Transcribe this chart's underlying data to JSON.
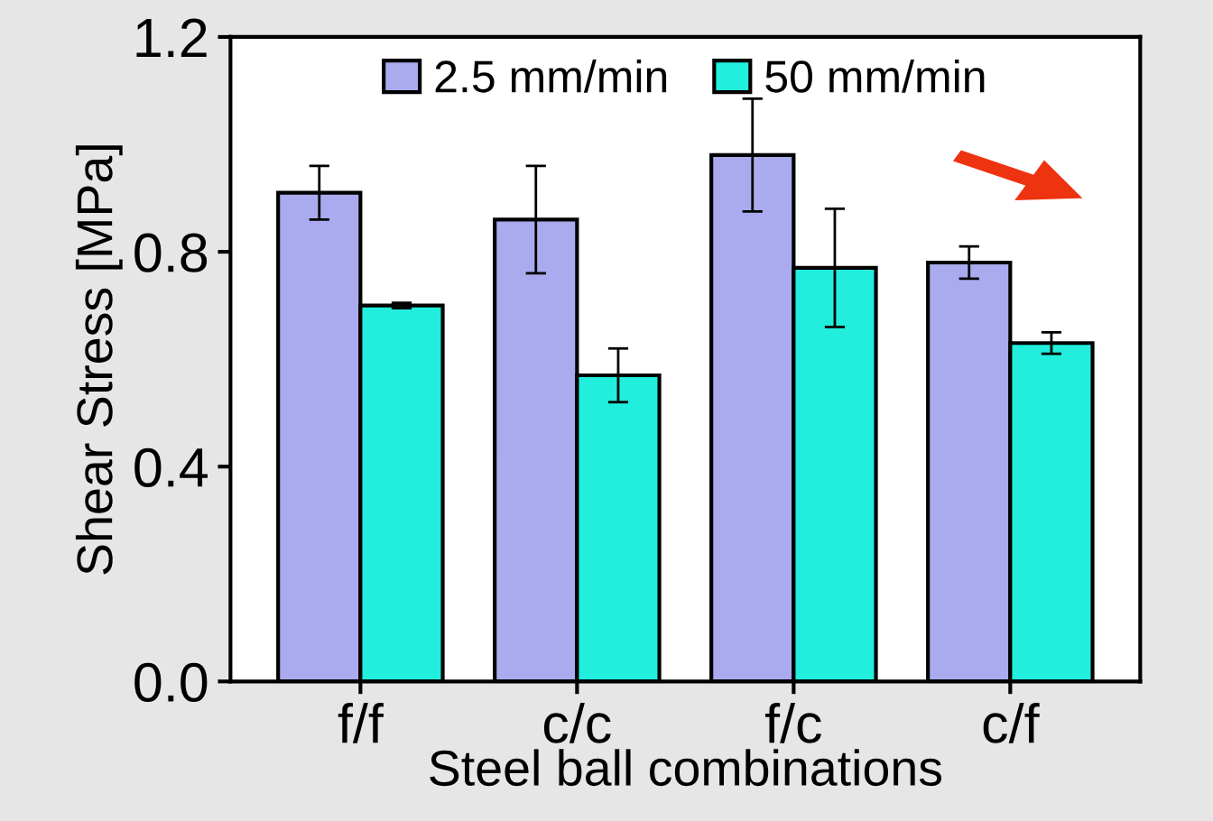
{
  "chart_data": {
    "type": "bar",
    "xlabel": "Steel ball combinations",
    "ylabel": "Shear Stress [MPa]",
    "categories": [
      "f/f",
      "c/c",
      "f/c",
      "c/f"
    ],
    "series": [
      {
        "name": "2.5 mm/min",
        "color": "#aaaaee",
        "values": [
          0.91,
          0.86,
          0.98,
          0.78
        ],
        "errors": [
          0.05,
          0.1,
          0.105,
          0.03
        ]
      },
      {
        "name": "50 mm/min",
        "color": "#22eedd",
        "values": [
          0.7,
          0.57,
          0.77,
          0.63
        ],
        "errors": [
          0.005,
          0.05,
          0.11,
          0.02
        ]
      }
    ],
    "ylim": [
      0,
      1.2
    ],
    "yticks": [
      {
        "value": 0,
        "label": "0.0"
      },
      0.4,
      0.8,
      1.2
    ],
    "grid": false,
    "legend": "top"
  }
}
